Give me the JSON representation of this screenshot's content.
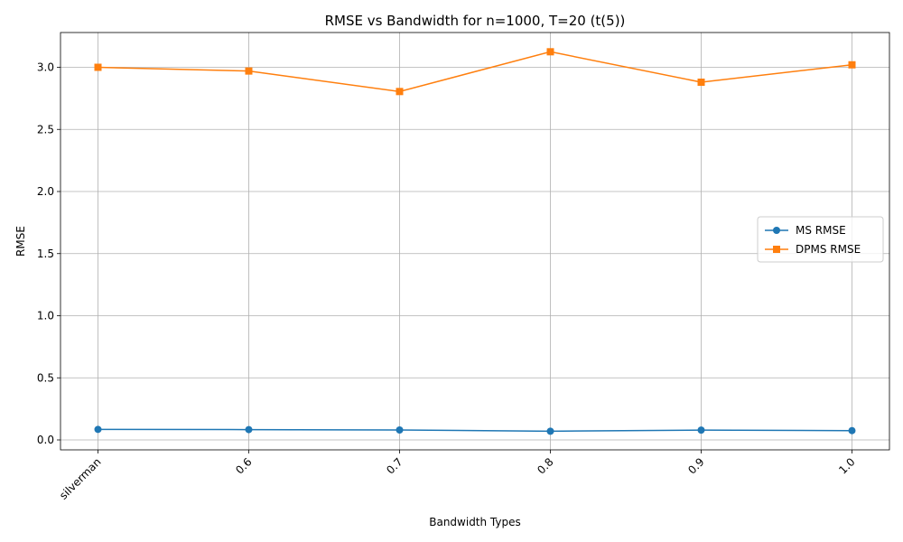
{
  "chart_data": {
    "type": "line",
    "title": "RMSE vs Bandwidth for n=1000, T=20 (t(5))",
    "xlabel": "Bandwidth Types",
    "ylabel": "RMSE",
    "categories": [
      "silverman",
      "0.6",
      "0.7",
      "0.8",
      "0.9",
      "1.0"
    ],
    "ylim": [
      -0.08,
      3.28
    ],
    "yticks": [
      0.0,
      0.5,
      1.0,
      1.5,
      2.0,
      2.5,
      3.0
    ],
    "ytick_labels": [
      "0.0",
      "0.5",
      "1.0",
      "1.5",
      "2.0",
      "2.5",
      "3.0"
    ],
    "grid": true,
    "legend_position": "center-right",
    "series": [
      {
        "name": "MS RMSE",
        "color": "#1f77b4",
        "marker": "circle",
        "values": [
          0.085,
          0.083,
          0.08,
          0.07,
          0.079,
          0.075
        ]
      },
      {
        "name": "DPMS RMSE",
        "color": "#ff7f0e",
        "marker": "square",
        "values": [
          3.0,
          2.97,
          2.805,
          3.125,
          2.88,
          3.02
        ]
      }
    ]
  }
}
